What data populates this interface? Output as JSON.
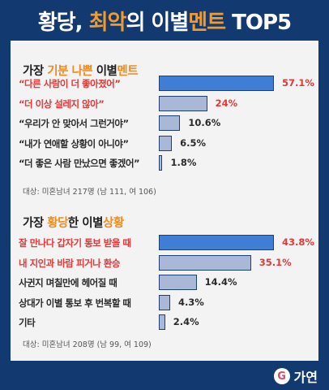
{
  "header": {
    "title_part1": "황당, ",
    "title_highlight": "최악",
    "title_part2": "의 이별",
    "title_highlight2": "멘트",
    "title_part3": " TOP5"
  },
  "colors": {
    "background": "#123a70",
    "accent_orange": "#f39a2b",
    "highlight_red": "#e23838",
    "top_bar": "#3f7ed4",
    "bar": "#a8b8d6"
  },
  "section1": {
    "title_a": "가장 ",
    "title_b": "기분 나쁜",
    "title_c": " 이별",
    "title_d": "멘트",
    "note": "대상: 미혼남녀 217명 (남 111, 여 106)"
  },
  "section2": {
    "title_a": "가장 ",
    "title_b": "황당",
    "title_c": "한 이별",
    "title_d": "상황",
    "note": "대상: 미혼남녀 208명 (남 99, 여 109)"
  },
  "chart_data": [
    {
      "type": "bar",
      "orientation": "horizontal",
      "title": "가장 기분 나쁜 이별멘트",
      "categories": [
        "“다른 사람이 더 좋아졌어”",
        "“더 이상 설레지 않아”",
        "“우리가 안 맞아서 그런거야”",
        "“내가 연애할 상황이 아니야”",
        "“더 좋은 사람 만났으면 좋겠어”"
      ],
      "values": [
        57.1,
        24,
        10.6,
        6.5,
        1.8
      ],
      "value_labels": [
        "57.1%",
        "24%",
        "10.6%",
        "6.5%",
        "1.8%"
      ],
      "unit": "%"
    },
    {
      "type": "bar",
      "orientation": "horizontal",
      "title": "가장 황당한 이별상황",
      "categories": [
        "잘 만나다 갑자기 통보 받을 때",
        "내 지인과 바람 피거나 환승",
        "사귄지 며칠만에 헤어질 때",
        "상대가 이별 통보 후 번복할 때",
        "기타"
      ],
      "values": [
        43.8,
        35.1,
        14.4,
        4.3,
        2.4
      ],
      "value_labels": [
        "43.8%",
        "35.1%",
        "14.4%",
        "4.3%",
        "2.4%"
      ],
      "unit": "%"
    }
  ],
  "footer": {
    "brand_icon": "heart-g-logo-icon",
    "brand_glyph": "G",
    "brand_name": "가연"
  }
}
